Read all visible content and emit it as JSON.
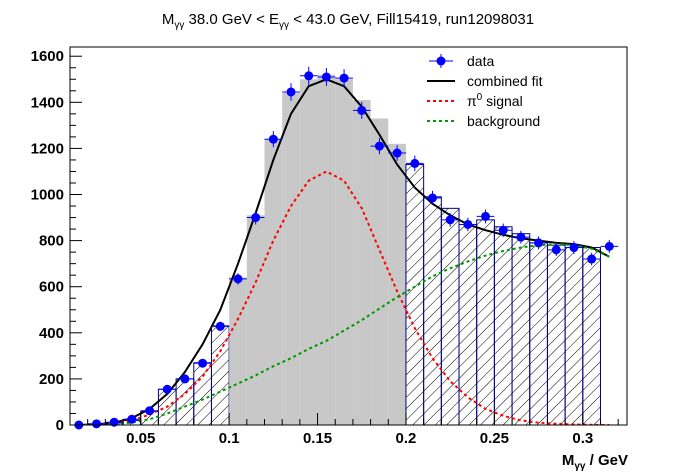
{
  "chart_data": {
    "type": "bar",
    "title": {
      "main": "M",
      "main_sub": "γγ",
      "mid": " 38.0 GeV < E",
      "mid_sub": "γγ",
      "tail": " < 43.0 GeV, Fill15419, run12098031"
    },
    "xlabel": {
      "main": "M",
      "sub": "γγ",
      "unit": " / GeV"
    },
    "ylabel": "",
    "xlim": [
      0.01,
      0.325
    ],
    "ylim": [
      0,
      1640
    ],
    "x_ticks": [
      0.05,
      0.1,
      0.15,
      0.2,
      0.25,
      0.3
    ],
    "x_tick_labels": [
      "0.05",
      "0.1",
      "0.15",
      "0.2",
      "0.25",
      "0.3"
    ],
    "y_ticks": [
      0,
      200,
      400,
      600,
      800,
      1000,
      1200,
      1400,
      1600
    ],
    "y_tick_labels": [
      "0",
      "200",
      "400",
      "600",
      "800",
      "1000",
      "1200",
      "1400",
      "1600"
    ],
    "bin_width": 0.01,
    "signal_window": [
      0.1,
      0.2
    ],
    "histogram": {
      "x": [
        0.015,
        0.025,
        0.035,
        0.045,
        0.055,
        0.065,
        0.075,
        0.085,
        0.095,
        0.105,
        0.115,
        0.125,
        0.135,
        0.145,
        0.155,
        0.165,
        0.175,
        0.185,
        0.195,
        0.205,
        0.215,
        0.225,
        0.235,
        0.245,
        0.255,
        0.265,
        0.275,
        0.285,
        0.295,
        0.305,
        0.315
      ],
      "values": [
        0,
        5,
        10,
        20,
        60,
        155,
        200,
        270,
        430,
        640,
        910,
        1240,
        1440,
        1500,
        1520,
        1500,
        1410,
        1330,
        1220,
        1130,
        990,
        940,
        870,
        890,
        860,
        830,
        790,
        780,
        770,
        770,
        0
      ]
    },
    "series": [
      {
        "name": "data",
        "type": "points",
        "color": "#0000ff",
        "x": [
          0.015,
          0.025,
          0.035,
          0.045,
          0.055,
          0.065,
          0.075,
          0.085,
          0.095,
          0.105,
          0.115,
          0.125,
          0.135,
          0.145,
          0.155,
          0.165,
          0.175,
          0.185,
          0.195,
          0.205,
          0.215,
          0.225,
          0.235,
          0.245,
          0.255,
          0.265,
          0.275,
          0.285,
          0.295,
          0.305,
          0.315
        ],
        "y": [
          0,
          5,
          12,
          25,
          62,
          155,
          200,
          268,
          428,
          634,
          900,
          1240,
          1445,
          1515,
          1510,
          1505,
          1365,
          1210,
          1180,
          1135,
          985,
          890,
          870,
          905,
          845,
          815,
          790,
          760,
          770,
          720,
          775
        ],
        "yerr": [
          2,
          3,
          4,
          6,
          8,
          12,
          14,
          16,
          20,
          25,
          30,
          35,
          38,
          39,
          39,
          39,
          37,
          35,
          34,
          34,
          31,
          30,
          29,
          30,
          29,
          28,
          28,
          27,
          28,
          27,
          28
        ]
      },
      {
        "name": "combined fit",
        "type": "line",
        "color": "#000000",
        "x": [
          0.015,
          0.025,
          0.035,
          0.045,
          0.055,
          0.065,
          0.075,
          0.085,
          0.095,
          0.105,
          0.115,
          0.125,
          0.135,
          0.145,
          0.155,
          0.165,
          0.175,
          0.185,
          0.195,
          0.205,
          0.215,
          0.225,
          0.235,
          0.245,
          0.255,
          0.265,
          0.275,
          0.285,
          0.295,
          0.305,
          0.315
        ],
        "y": [
          0,
          3,
          10,
          30,
          70,
          135,
          230,
          350,
          500,
          700,
          920,
          1150,
          1350,
          1470,
          1500,
          1470,
          1380,
          1260,
          1130,
          1030,
          960,
          910,
          870,
          845,
          825,
          810,
          800,
          790,
          785,
          770,
          730
        ]
      },
      {
        "name": "π⁰ signal",
        "type": "dashed-line",
        "color": "#ff0000",
        "x": [
          0.015,
          0.025,
          0.035,
          0.045,
          0.055,
          0.065,
          0.075,
          0.085,
          0.095,
          0.105,
          0.115,
          0.125,
          0.135,
          0.145,
          0.155,
          0.165,
          0.175,
          0.185,
          0.195,
          0.205,
          0.215,
          0.225,
          0.235,
          0.245,
          0.255,
          0.265,
          0.275,
          0.285,
          0.295,
          0.305,
          0.315
        ],
        "y": [
          0,
          2,
          8,
          20,
          45,
          80,
          135,
          210,
          320,
          460,
          620,
          800,
          950,
          1060,
          1100,
          1060,
          940,
          760,
          580,
          420,
          290,
          190,
          120,
          70,
          40,
          20,
          10,
          5,
          2,
          1,
          0
        ]
      },
      {
        "name": "background",
        "type": "dashed-line",
        "color": "#009900",
        "x": [
          0.015,
          0.025,
          0.035,
          0.045,
          0.055,
          0.065,
          0.075,
          0.085,
          0.095,
          0.105,
          0.115,
          0.125,
          0.135,
          0.145,
          0.155,
          0.165,
          0.175,
          0.185,
          0.195,
          0.205,
          0.215,
          0.225,
          0.235,
          0.245,
          0.255,
          0.265,
          0.275,
          0.285,
          0.295,
          0.305,
          0.315
        ],
        "y": [
          0,
          2,
          5,
          10,
          25,
          50,
          80,
          110,
          145,
          180,
          215,
          255,
          290,
          330,
          365,
          410,
          455,
          505,
          555,
          600,
          645,
          680,
          710,
          735,
          755,
          770,
          780,
          785,
          780,
          765,
          730
        ]
      }
    ],
    "legend": {
      "position": "top-right",
      "entries": [
        {
          "label": "data",
          "color": "#0000ff",
          "style": "marker"
        },
        {
          "label": "combined fit",
          "color": "#000000",
          "style": "solid"
        },
        {
          "label_main": "π",
          "label_sup": "0",
          "label_tail": " signal",
          "color": "#ff0000",
          "style": "dashed"
        },
        {
          "label": "background",
          "color": "#009900",
          "style": "dashed"
        }
      ]
    },
    "colors": {
      "signal_fill": "#c8c8c8",
      "hist_edge": "#00007f",
      "hatch": "#000000"
    }
  }
}
